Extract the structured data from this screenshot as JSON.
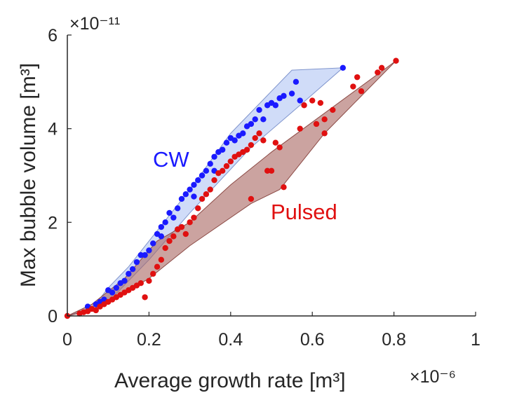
{
  "chart_data": {
    "type": "scatter",
    "title": "",
    "xlabel": "Average growth rate [m³]",
    "ylabel": "Max bubble volume [m³]",
    "x_multiplier_label": "×10⁻⁶",
    "y_multiplier_label": "×10⁻¹¹",
    "xlim": [
      0,
      1
    ],
    "ylim": [
      0,
      6
    ],
    "xticks": [
      0,
      0.2,
      0.4,
      0.6,
      0.8,
      1
    ],
    "yticks": [
      0,
      2,
      4,
      6
    ],
    "xtick_labels": [
      "0",
      "0.2",
      "0.4",
      "0.6",
      "0.8",
      "1"
    ],
    "ytick_labels": [
      "0",
      "2",
      "4",
      "6"
    ],
    "grid": false,
    "series": [
      {
        "name": "CW",
        "color": "#1a1aff",
        "fill_color": "#a9bff2",
        "annotation": "CW",
        "hull": [
          [
            0,
            0
          ],
          [
            0.06,
            0.15
          ],
          [
            0.1,
            0.6
          ],
          [
            0.15,
            1.05
          ],
          [
            0.2,
            1.6
          ],
          [
            0.3,
            2.7
          ],
          [
            0.4,
            3.9
          ],
          [
            0.5,
            4.8
          ],
          [
            0.55,
            5.25
          ],
          [
            0.675,
            5.3
          ],
          [
            0.57,
            4.5
          ],
          [
            0.45,
            3.6
          ],
          [
            0.3,
            2.2
          ],
          [
            0.2,
            1.2
          ],
          [
            0.1,
            0.3
          ]
        ],
        "points": [
          [
            0.05,
            0.2
          ],
          [
            0.07,
            0.25
          ],
          [
            0.08,
            0.3
          ],
          [
            0.09,
            0.35
          ],
          [
            0.1,
            0.55
          ],
          [
            0.11,
            0.5
          ],
          [
            0.12,
            0.6
          ],
          [
            0.13,
            0.7
          ],
          [
            0.14,
            0.75
          ],
          [
            0.15,
            0.9
          ],
          [
            0.16,
            1.0
          ],
          [
            0.17,
            1.15
          ],
          [
            0.18,
            1.3
          ],
          [
            0.19,
            1.3
          ],
          [
            0.2,
            1.4
          ],
          [
            0.21,
            1.55
          ],
          [
            0.22,
            1.75
          ],
          [
            0.23,
            1.9
          ],
          [
            0.23,
            1.7
          ],
          [
            0.24,
            2.0
          ],
          [
            0.25,
            2.2
          ],
          [
            0.26,
            2.1
          ],
          [
            0.27,
            2.3
          ],
          [
            0.28,
            2.5
          ],
          [
            0.29,
            2.6
          ],
          [
            0.3,
            2.7
          ],
          [
            0.31,
            2.8
          ],
          [
            0.31,
            2.55
          ],
          [
            0.32,
            2.9
          ],
          [
            0.33,
            3.0
          ],
          [
            0.34,
            3.1
          ],
          [
            0.35,
            3.25
          ],
          [
            0.36,
            3.4
          ],
          [
            0.36,
            3.1
          ],
          [
            0.37,
            3.5
          ],
          [
            0.38,
            3.55
          ],
          [
            0.39,
            3.7
          ],
          [
            0.4,
            3.8
          ],
          [
            0.41,
            3.75
          ],
          [
            0.42,
            3.85
          ],
          [
            0.43,
            3.9
          ],
          [
            0.44,
            4.05
          ],
          [
            0.45,
            4.1
          ],
          [
            0.46,
            4.2
          ],
          [
            0.47,
            4.4
          ],
          [
            0.48,
            4.2
          ],
          [
            0.49,
            4.5
          ],
          [
            0.5,
            4.55
          ],
          [
            0.51,
            4.5
          ],
          [
            0.52,
            4.65
          ],
          [
            0.53,
            4.7
          ],
          [
            0.55,
            4.75
          ],
          [
            0.56,
            5.0
          ],
          [
            0.57,
            4.6
          ],
          [
            0.675,
            5.3
          ]
        ]
      },
      {
        "name": "Pulsed",
        "color": "#e01010",
        "fill_color": "#a86560",
        "annotation": "Pulsed",
        "hull": [
          [
            0,
            0
          ],
          [
            0.05,
            0.1
          ],
          [
            0.1,
            0.3
          ],
          [
            0.2,
            0.8
          ],
          [
            0.3,
            1.5
          ],
          [
            0.45,
            2.4
          ],
          [
            0.52,
            2.7
          ],
          [
            0.63,
            3.9
          ],
          [
            0.805,
            5.45
          ],
          [
            0.5,
            3.5
          ],
          [
            0.4,
            2.8
          ],
          [
            0.3,
            2.0
          ],
          [
            0.22,
            1.6
          ],
          [
            0.14,
            0.8
          ],
          [
            0.06,
            0.25
          ]
        ],
        "points": [
          [
            0,
            0
          ],
          [
            0.03,
            0.05
          ],
          [
            0.04,
            0.08
          ],
          [
            0.05,
            0.1
          ],
          [
            0.06,
            0.15
          ],
          [
            0.07,
            0.12
          ],
          [
            0.08,
            0.2
          ],
          [
            0.09,
            0.25
          ],
          [
            0.1,
            0.3
          ],
          [
            0.11,
            0.35
          ],
          [
            0.12,
            0.4
          ],
          [
            0.13,
            0.45
          ],
          [
            0.14,
            0.5
          ],
          [
            0.15,
            0.55
          ],
          [
            0.16,
            0.6
          ],
          [
            0.17,
            0.65
          ],
          [
            0.18,
            0.7
          ],
          [
            0.19,
            0.4
          ],
          [
            0.2,
            0.75
          ],
          [
            0.21,
            0.9
          ],
          [
            0.22,
            1.05
          ],
          [
            0.23,
            1.2
          ],
          [
            0.24,
            1.45
          ],
          [
            0.25,
            1.6
          ],
          [
            0.26,
            1.7
          ],
          [
            0.27,
            1.85
          ],
          [
            0.28,
            1.9
          ],
          [
            0.29,
            1.75
          ],
          [
            0.3,
            2.0
          ],
          [
            0.31,
            2.1
          ],
          [
            0.32,
            2.3
          ],
          [
            0.33,
            2.5
          ],
          [
            0.34,
            2.6
          ],
          [
            0.35,
            2.7
          ],
          [
            0.36,
            2.9
          ],
          [
            0.37,
            3.05
          ],
          [
            0.38,
            3.1
          ],
          [
            0.39,
            3.2
          ],
          [
            0.4,
            3.3
          ],
          [
            0.41,
            3.4
          ],
          [
            0.42,
            3.45
          ],
          [
            0.43,
            3.5
          ],
          [
            0.44,
            3.55
          ],
          [
            0.45,
            3.65
          ],
          [
            0.46,
            3.8
          ],
          [
            0.47,
            3.9
          ],
          [
            0.48,
            3.75
          ],
          [
            0.49,
            3.1
          ],
          [
            0.5,
            3.1
          ],
          [
            0.51,
            3.7
          ],
          [
            0.52,
            3.6
          ],
          [
            0.45,
            2.5
          ],
          [
            0.53,
            2.75
          ],
          [
            0.57,
            4.0
          ],
          [
            0.58,
            4.5
          ],
          [
            0.6,
            4.6
          ],
          [
            0.61,
            4.1
          ],
          [
            0.62,
            4.55
          ],
          [
            0.63,
            4.2
          ],
          [
            0.63,
            3.9
          ],
          [
            0.65,
            4.4
          ],
          [
            0.7,
            4.9
          ],
          [
            0.71,
            5.1
          ],
          [
            0.72,
            4.8
          ],
          [
            0.76,
            5.2
          ],
          [
            0.77,
            5.3
          ],
          [
            0.805,
            5.45
          ]
        ]
      }
    ]
  }
}
